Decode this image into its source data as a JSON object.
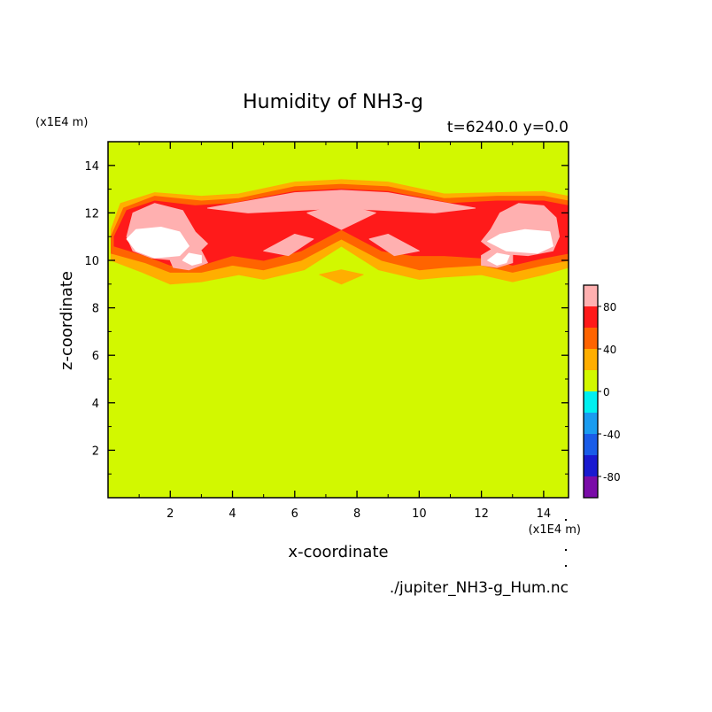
{
  "chart_data": {
    "type": "heatmap",
    "title": "Humidity of NH3-g",
    "subtitle": "t=6240.0 y=0.0",
    "xlabel": "x-coordinate",
    "ylabel": "z-coordinate",
    "x_unit": "(x1E4 m)",
    "y_unit": "(x1E4 m)",
    "xlim": [
      0,
      14.8
    ],
    "ylim": [
      0,
      15
    ],
    "x_ticks": [
      2,
      4,
      6,
      8,
      10,
      12,
      14
    ],
    "y_ticks": [
      2,
      4,
      6,
      8,
      10,
      12,
      14
    ],
    "background_value_range": [
      0,
      20
    ],
    "legend_placement": "right",
    "colorbar": {
      "levels": [
        -100,
        -80,
        -60,
        -40,
        -20,
        0,
        20,
        40,
        60,
        80,
        100
      ],
      "labels": [
        80,
        40,
        0,
        -40,
        -80
      ],
      "colors": [
        "#7a0ca8",
        "#1a1ad0",
        "#1a5ce8",
        "#1a9cf0",
        "#00f0f0",
        "#d2f800",
        "#ffae00",
        "#ff6400",
        "#ff1a1a",
        "#ffb0b0"
      ]
    },
    "regions": [
      {
        "level_range": [
          20,
          40
        ],
        "polygons": [
          [
            [
              0.1,
              11.3
            ],
            [
              0.4,
              12.4
            ],
            [
              1.5,
              12.85
            ],
            [
              3.0,
              12.7
            ],
            [
              4.2,
              12.8
            ],
            [
              6.0,
              13.3
            ],
            [
              7.5,
              13.4
            ],
            [
              9.0,
              13.3
            ],
            [
              10.8,
              12.8
            ],
            [
              12.5,
              12.85
            ],
            [
              14.0,
              12.9
            ],
            [
              14.8,
              12.7
            ],
            [
              14.8,
              9.7
            ],
            [
              14.0,
              9.4
            ],
            [
              13.0,
              9.1
            ],
            [
              12.0,
              9.4
            ],
            [
              10.8,
              9.3
            ],
            [
              10.0,
              9.2
            ],
            [
              8.7,
              9.6
            ],
            [
              7.5,
              10.6
            ],
            [
              6.3,
              9.6
            ],
            [
              5.0,
              9.2
            ],
            [
              4.2,
              9.4
            ],
            [
              3.0,
              9.1
            ],
            [
              2.0,
              9.0
            ],
            [
              1.1,
              9.5
            ],
            [
              0.1,
              10.0
            ]
          ],
          [
            [
              6.8,
              9.4
            ],
            [
              7.5,
              9.6
            ],
            [
              8.2,
              9.4
            ],
            [
              7.5,
              9.0
            ]
          ]
        ]
      },
      {
        "level_range": [
          40,
          60
        ],
        "polygons": [
          [
            [
              0.1,
              11.0
            ],
            [
              0.5,
              12.2
            ],
            [
              1.5,
              12.7
            ],
            [
              3.0,
              12.5
            ],
            [
              4.2,
              12.6
            ],
            [
              6.0,
              13.1
            ],
            [
              7.5,
              13.2
            ],
            [
              9.0,
              13.1
            ],
            [
              10.8,
              12.6
            ],
            [
              12.5,
              12.7
            ],
            [
              14.0,
              12.7
            ],
            [
              14.8,
              12.5
            ],
            [
              14.8,
              10.0
            ],
            [
              14.0,
              9.8
            ],
            [
              13.0,
              9.5
            ],
            [
              12.0,
              9.8
            ],
            [
              10.8,
              9.7
            ],
            [
              10.0,
              9.6
            ],
            [
              8.8,
              10.0
            ],
            [
              7.5,
              10.9
            ],
            [
              6.2,
              10.0
            ],
            [
              5.0,
              9.6
            ],
            [
              4.0,
              9.8
            ],
            [
              3.0,
              9.5
            ],
            [
              2.0,
              9.5
            ],
            [
              1.2,
              9.9
            ],
            [
              0.1,
              10.3
            ]
          ]
        ]
      },
      {
        "level_range": [
          60,
          80
        ],
        "polygons": [
          [
            [
              0.2,
              11.0
            ],
            [
              0.6,
              12.1
            ],
            [
              1.5,
              12.5
            ],
            [
              2.8,
              12.3
            ],
            [
              4.0,
              12.4
            ],
            [
              6.0,
              12.9
            ],
            [
              7.5,
              13.0
            ],
            [
              9.0,
              12.9
            ],
            [
              11.0,
              12.4
            ],
            [
              12.5,
              12.5
            ],
            [
              14.0,
              12.5
            ],
            [
              14.8,
              12.3
            ],
            [
              14.8,
              10.3
            ],
            [
              14.0,
              10.1
            ],
            [
              13.0,
              9.8
            ],
            [
              12.0,
              10.1
            ],
            [
              10.8,
              10.2
            ],
            [
              9.8,
              10.2
            ],
            [
              8.8,
              10.4
            ],
            [
              7.5,
              11.3
            ],
            [
              6.2,
              10.4
            ],
            [
              5.0,
              10.0
            ],
            [
              4.0,
              10.2
            ],
            [
              3.0,
              9.8
            ],
            [
              2.0,
              9.8
            ],
            [
              1.2,
              10.2
            ],
            [
              0.2,
              10.6
            ]
          ]
        ]
      },
      {
        "level_range": [
          80,
          100
        ],
        "polygons": [
          [
            [
              0.6,
              11.0
            ],
            [
              0.8,
              12.0
            ],
            [
              1.5,
              12.4
            ],
            [
              2.4,
              12.1
            ],
            [
              2.8,
              11.2
            ],
            [
              3.2,
              10.7
            ],
            [
              2.8,
              10.2
            ],
            [
              2.2,
              10.0
            ],
            [
              1.4,
              10.1
            ],
            [
              0.8,
              10.4
            ]
          ],
          [
            [
              12.0,
              10.8
            ],
            [
              12.3,
              11.3
            ],
            [
              12.6,
              12.0
            ],
            [
              13.2,
              12.4
            ],
            [
              14.0,
              12.3
            ],
            [
              14.4,
              11.8
            ],
            [
              14.5,
              11.0
            ],
            [
              14.3,
              10.4
            ],
            [
              13.5,
              10.2
            ],
            [
              12.5,
              10.3
            ]
          ],
          [
            [
              3.2,
              12.2
            ],
            [
              4.5,
              12.5
            ],
            [
              6.0,
              12.85
            ],
            [
              7.5,
              12.95
            ],
            [
              9.0,
              12.85
            ],
            [
              10.5,
              12.5
            ],
            [
              11.8,
              12.2
            ],
            [
              10.5,
              12.0
            ],
            [
              9.0,
              12.1
            ],
            [
              7.5,
              12.2
            ],
            [
              6.0,
              12.1
            ],
            [
              4.5,
              12.0
            ]
          ],
          [
            [
              6.4,
              12.0
            ],
            [
              7.5,
              11.3
            ],
            [
              8.6,
              12.0
            ],
            [
              7.5,
              12.35
            ]
          ],
          [
            [
              5.0,
              10.4
            ],
            [
              6.0,
              11.1
            ],
            [
              6.6,
              10.9
            ],
            [
              5.8,
              10.2
            ]
          ],
          [
            [
              10.0,
              10.4
            ],
            [
              9.0,
              11.1
            ],
            [
              8.4,
              10.9
            ],
            [
              9.2,
              10.2
            ]
          ],
          [
            [
              2.0,
              10.0
            ],
            [
              2.4,
              10.5
            ],
            [
              3.0,
              10.4
            ],
            [
              3.2,
              9.9
            ],
            [
              2.6,
              9.6
            ],
            [
              2.1,
              9.7
            ]
          ],
          [
            [
              12.0,
              10.2
            ],
            [
              12.5,
              10.6
            ],
            [
              13.0,
              10.4
            ],
            [
              13.0,
              9.9
            ],
            [
              12.5,
              9.7
            ],
            [
              12.0,
              9.8
            ]
          ]
        ]
      },
      {
        "level_range": [
          100,
          120
        ],
        "polygons": [
          [
            [
              0.6,
              10.9
            ],
            [
              0.9,
              11.3
            ],
            [
              1.7,
              11.4
            ],
            [
              2.3,
              11.2
            ],
            [
              2.6,
              10.6
            ],
            [
              2.3,
              10.2
            ],
            [
              1.5,
              10.1
            ],
            [
              0.9,
              10.4
            ]
          ],
          [
            [
              12.2,
              10.8
            ],
            [
              12.6,
              11.1
            ],
            [
              13.4,
              11.3
            ],
            [
              14.2,
              11.2
            ],
            [
              14.3,
              10.6
            ],
            [
              13.8,
              10.3
            ],
            [
              12.8,
              10.4
            ]
          ],
          [
            [
              2.4,
              10.0
            ],
            [
              2.6,
              10.3
            ],
            [
              3.0,
              10.2
            ],
            [
              3.0,
              9.9
            ],
            [
              2.7,
              9.8
            ]
          ],
          [
            [
              12.2,
              10.0
            ],
            [
              12.5,
              10.3
            ],
            [
              12.9,
              10.2
            ],
            [
              12.8,
              9.9
            ],
            [
              12.5,
              9.8
            ]
          ]
        ]
      }
    ]
  },
  "colorbar_tick_labels": [
    "80",
    "40",
    "0",
    "-40",
    "-80"
  ],
  "x_tick_labels": [
    "2",
    "4",
    "6",
    "8",
    "10",
    "12",
    "14"
  ],
  "y_tick_labels": [
    "2",
    "4",
    "6",
    "8",
    "10",
    "12",
    "14"
  ],
  "source_file": "./jupiter_NH3-g_Hum.nc"
}
